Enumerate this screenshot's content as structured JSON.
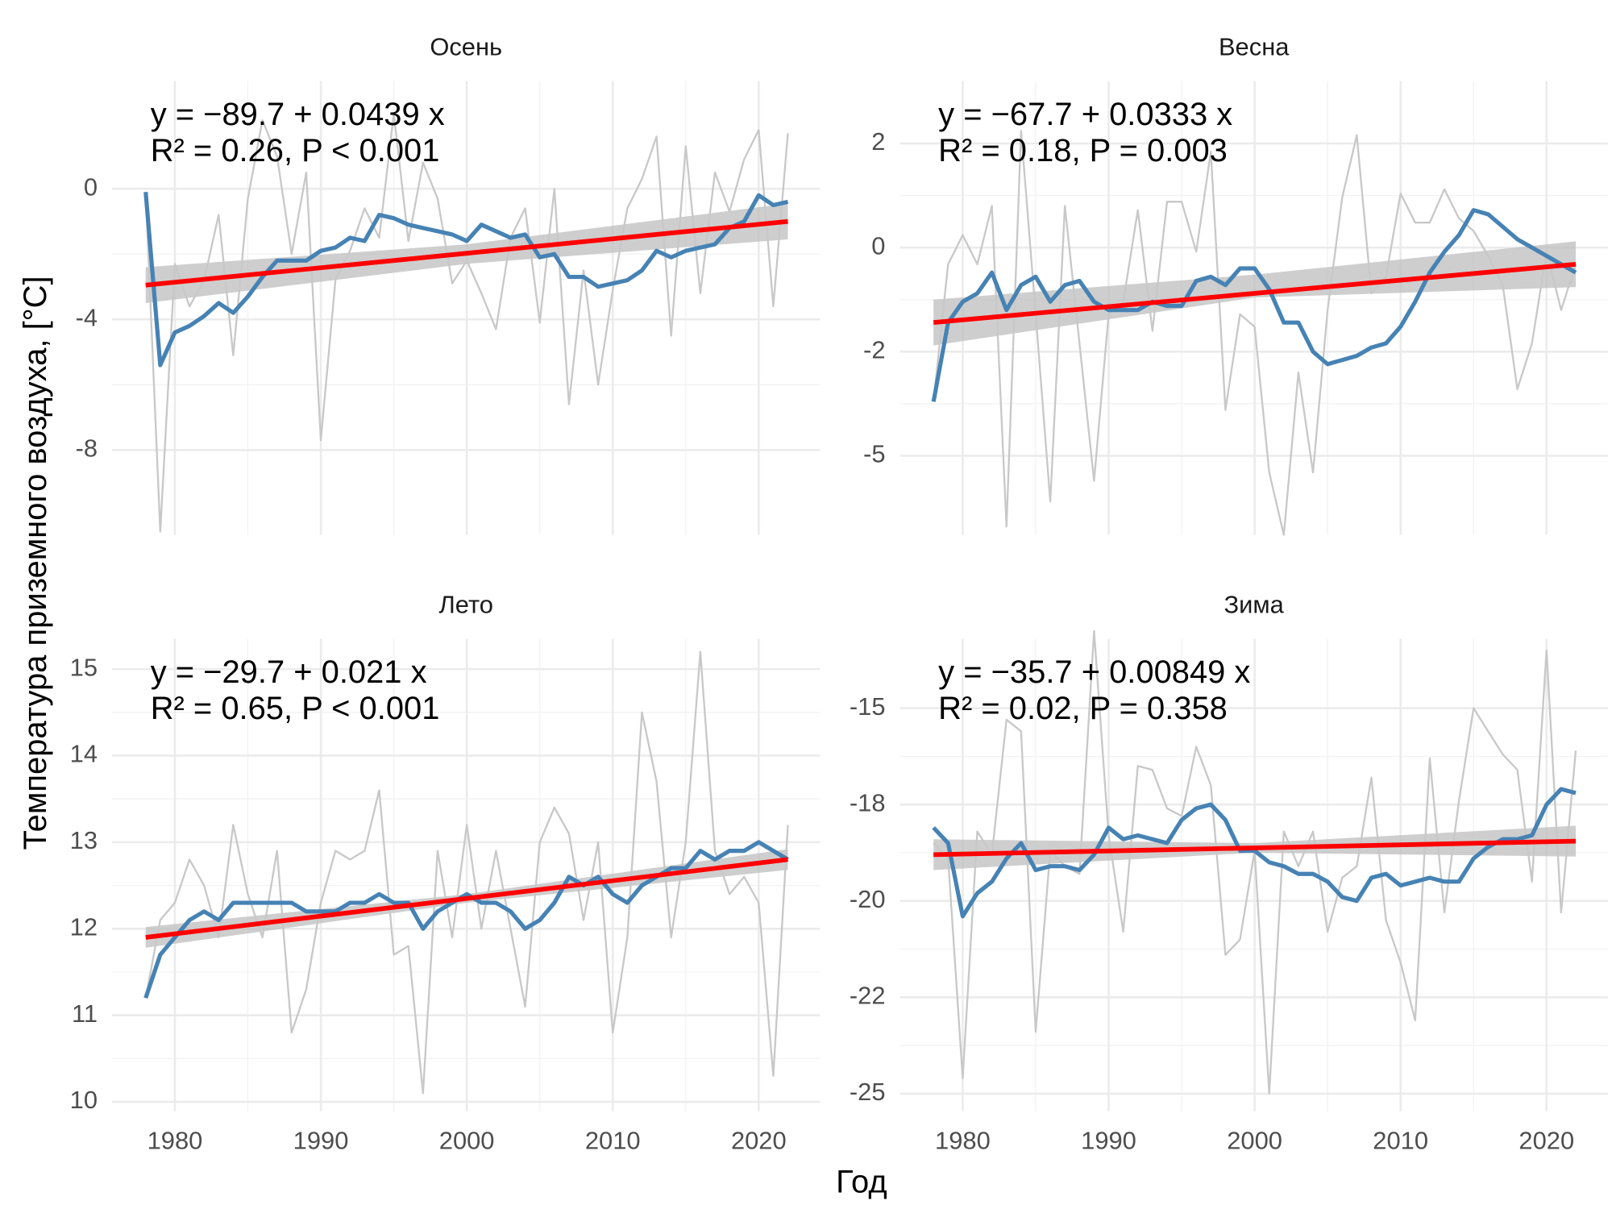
{
  "xlabel": "Год",
  "ylabel": "Температура приземного воздуха, [°C]",
  "chart_data": [
    {
      "type": "line",
      "title": "Осень",
      "equation": "y = −89.7 + 0.0439 x",
      "stats": "R² = 0.26, P < 0.001",
      "x": [
        1978,
        1979,
        1980,
        1981,
        1982,
        1983,
        1984,
        1985,
        1986,
        1987,
        1988,
        1989,
        1990,
        1991,
        1992,
        1993,
        1994,
        1995,
        1996,
        1997,
        1998,
        1999,
        2000,
        2001,
        2002,
        2003,
        2004,
        2005,
        2006,
        2007,
        2008,
        2009,
        2010,
        2011,
        2012,
        2013,
        2014,
        2015,
        2016,
        2017,
        2018,
        2019,
        2020,
        2021,
        2022
      ],
      "xlim": [
        1975.7,
        2024.2
      ],
      "xticks": [
        1980,
        1990,
        2000,
        2010,
        2020
      ],
      "xtick_labels": false,
      "ylim": [
        -10.6,
        3.3
      ],
      "yticks": [
        -8,
        -4,
        0
      ],
      "grid": true,
      "band": {
        "x": [
          1978,
          2000,
          2022
        ],
        "lower": [
          -3.5,
          -2.3,
          -1.55
        ],
        "upper": [
          -2.4,
          -1.7,
          -0.45
        ],
        "color": "#bebebe"
      },
      "series": [
        {
          "color": "#c8c8c8",
          "values": [
            -0.1,
            -10.5,
            -2.3,
            -3.6,
            -2.8,
            -0.8,
            -5.1,
            -0.3,
            2.1,
            1.0,
            -2.0,
            0.5,
            -7.7,
            -2.8,
            -1.9,
            -0.6,
            -1.5,
            2.3,
            -1.6,
            0.8,
            -0.3,
            -2.9,
            -2.2,
            -3.2,
            -4.3,
            -1.5,
            -0.6,
            -4.1,
            0.0,
            -6.6,
            -2.5,
            -6.0,
            -3.1,
            -0.6,
            0.3,
            1.6,
            -4.5,
            1.3,
            -3.2,
            0.5,
            -0.7,
            0.9,
            1.8,
            -3.6,
            1.7
          ]
        },
        {
          "color": "#4682b4",
          "values": [
            -0.1,
            -5.4,
            -4.4,
            -4.2,
            -3.9,
            -3.5,
            -3.8,
            -3.3,
            -2.7,
            -2.2,
            -2.2,
            -2.2,
            -1.9,
            -1.8,
            -1.5,
            -1.6,
            -0.8,
            -0.9,
            -1.1,
            -1.2,
            -1.3,
            -1.4,
            -1.6,
            -1.1,
            -1.3,
            -1.5,
            -1.4,
            -2.1,
            -2.0,
            -2.7,
            -2.7,
            -3.0,
            -2.9,
            -2.8,
            -2.5,
            -1.9,
            -2.1,
            -1.9,
            -1.8,
            -1.7,
            -1.2,
            -1.0,
            -0.2,
            -0.5,
            -0.4
          ]
        },
        {
          "color": "#ff0000",
          "x": [
            1978,
            2022
          ],
          "values": [
            -2.95,
            -1.0
          ]
        }
      ]
    },
    {
      "type": "line",
      "title": "Весна",
      "equation": "y = −67.7 + 0.0333 x",
      "stats": "R² = 0.18, P = 0.003",
      "x": [
        1978,
        1979,
        1980,
        1981,
        1982,
        1983,
        1984,
        1985,
        1986,
        1987,
        1988,
        1989,
        1990,
        1991,
        1992,
        1993,
        1994,
        1995,
        1996,
        1997,
        1998,
        1999,
        2000,
        2001,
        2002,
        2003,
        2004,
        2005,
        2006,
        2007,
        2008,
        2009,
        2010,
        2011,
        2012,
        2013,
        2014,
        2015,
        2016,
        2017,
        2018,
        2019,
        2020,
        2021,
        2022
      ],
      "xlim": [
        1975.7,
        2024.2
      ],
      "xticks": [
        1980,
        1990,
        2000,
        2010,
        2020
      ],
      "xtick_labels": false,
      "ylim": [
        -6.9,
        4.0
      ],
      "yticks": [
        -5,
        {
          "value": -2.5,
          "label": "-2"
        },
        0,
        {
          "value": 2.5,
          "label": "2"
        }
      ],
      "grid": true,
      "band": {
        "x": [
          1978,
          2000,
          2022
        ],
        "lower": [
          -2.35,
          -1.2,
          -0.95
        ],
        "upper": [
          -1.25,
          -0.65,
          0.15
        ],
        "color": "#bebebe"
      },
      "series": [
        {
          "color": "#c8c8c8",
          "values": [
            -3.7,
            -0.4,
            0.3,
            -0.4,
            1.0,
            -6.7,
            2.8,
            -1.6,
            -6.1,
            1.0,
            -2.3,
            -5.6,
            -1.6,
            -1.3,
            0.9,
            -2.0,
            1.1,
            1.1,
            -0.1,
            2.3,
            -3.9,
            -1.6,
            -1.9,
            -5.4,
            -6.9,
            -3.0,
            -5.4,
            -1.5,
            1.2,
            2.7,
            -1.1,
            -0.7,
            1.3,
            0.6,
            0.6,
            1.4,
            0.7,
            0.4,
            -0.2,
            -0.9,
            -3.4,
            -2.3,
            -0.1,
            -1.5,
            -0.4
          ]
        },
        {
          "color": "#4682b4",
          "values": [
            -3.7,
            -1.8,
            -1.3,
            -1.1,
            -0.6,
            -1.5,
            -0.9,
            -0.7,
            -1.3,
            -0.9,
            -0.8,
            -1.3,
            -1.5,
            -1.5,
            -1.5,
            -1.3,
            -1.4,
            -1.4,
            -0.8,
            -0.7,
            -0.9,
            -0.5,
            -0.5,
            -1.0,
            -1.8,
            -1.8,
            -2.5,
            -2.8,
            -2.7,
            -2.6,
            -2.4,
            -2.3,
            -1.9,
            -1.3,
            -0.6,
            -0.1,
            0.3,
            0.9,
            0.8,
            0.5,
            0.2,
            0.0,
            -0.2,
            -0.4,
            -0.6
          ]
        },
        {
          "color": "#ff0000",
          "x": [
            1978,
            2022
          ],
          "values": [
            -1.8,
            -0.4
          ]
        }
      ]
    },
    {
      "type": "line",
      "title": "Лето",
      "equation": "y = −29.7 + 0.021 x",
      "stats": "R² = 0.65, P < 0.001",
      "x": [
        1978,
        1979,
        1980,
        1981,
        1982,
        1983,
        1984,
        1985,
        1986,
        1987,
        1988,
        1989,
        1990,
        1991,
        1992,
        1993,
        1994,
        1995,
        1996,
        1997,
        1998,
        1999,
        2000,
        2001,
        2002,
        2003,
        2004,
        2005,
        2006,
        2007,
        2008,
        2009,
        2010,
        2011,
        2012,
        2013,
        2014,
        2015,
        2016,
        2017,
        2018,
        2019,
        2020,
        2021,
        2022
      ],
      "xlim": [
        1975.7,
        2024.2
      ],
      "xticks": [
        1980,
        1990,
        2000,
        2010,
        2020
      ],
      "xtick_labels": true,
      "ylim": [
        9.89,
        15.35
      ],
      "yticks": [
        10,
        11,
        12,
        13,
        14,
        15
      ],
      "grid": true,
      "band": {
        "x": [
          1978,
          2000,
          2022
        ],
        "lower": [
          11.78,
          12.3,
          12.68
        ],
        "upper": [
          12.02,
          12.4,
          12.92
        ],
        "color": "#bebebe"
      },
      "series": [
        {
          "color": "#c8c8c8",
          "values": [
            11.2,
            12.1,
            12.3,
            12.8,
            12.5,
            11.9,
            13.2,
            12.4,
            11.9,
            12.9,
            10.8,
            11.3,
            12.3,
            12.9,
            12.8,
            12.9,
            13.6,
            11.7,
            11.8,
            10.1,
            12.9,
            11.9,
            13.2,
            12.0,
            12.9,
            12.0,
            11.1,
            13.0,
            13.4,
            13.1,
            12.1,
            13.0,
            10.8,
            11.9,
            14.5,
            13.7,
            11.9,
            13.0,
            15.2,
            12.9,
            12.4,
            12.6,
            12.3,
            10.3,
            13.2
          ]
        },
        {
          "color": "#4682b4",
          "values": [
            11.2,
            11.7,
            11.9,
            12.1,
            12.2,
            12.1,
            12.3,
            12.3,
            12.3,
            12.3,
            12.3,
            12.2,
            12.2,
            12.2,
            12.3,
            12.3,
            12.4,
            12.3,
            12.3,
            12.0,
            12.2,
            12.3,
            12.4,
            12.3,
            12.3,
            12.2,
            12.0,
            12.1,
            12.3,
            12.6,
            12.5,
            12.6,
            12.4,
            12.3,
            12.5,
            12.6,
            12.7,
            12.7,
            12.9,
            12.8,
            12.9,
            12.9,
            13.0,
            12.9,
            12.8
          ]
        },
        {
          "color": "#ff0000",
          "x": [
            1978,
            2022
          ],
          "values": [
            11.9,
            12.8
          ]
        }
      ]
    },
    {
      "type": "line",
      "title": "Зима",
      "equation": "y = −35.7 + 0.00849 x",
      "stats": "R² = 0.02, P = 0.358",
      "x": [
        1978,
        1979,
        1980,
        1981,
        1982,
        1983,
        1984,
        1985,
        1986,
        1987,
        1988,
        1989,
        1990,
        1991,
        1992,
        1993,
        1994,
        1995,
        1996,
        1997,
        1998,
        1999,
        2000,
        2001,
        2002,
        2003,
        2004,
        2005,
        2006,
        2007,
        2008,
        2009,
        2010,
        2011,
        2012,
        2013,
        2014,
        2015,
        2016,
        2017,
        2018,
        2019,
        2020,
        2021,
        2022
      ],
      "xlim": [
        1975.7,
        2024.2
      ],
      "xticks": [
        1980,
        1990,
        2000,
        2010,
        2020
      ],
      "xtick_labels": true,
      "ylim": [
        -25.46,
        -13.2
      ],
      "yticks": [
        -25,
        {
          "value": -22.5,
          "label": "-22"
        },
        -20,
        {
          "value": -17.5,
          "label": "-18"
        },
        -15
      ],
      "grid": true,
      "band": {
        "x": [
          1978,
          2000,
          2022
        ],
        "lower": [
          -19.2,
          -18.75,
          -18.85
        ],
        "upper": [
          -18.4,
          -18.5,
          -18.05
        ],
        "color": "#bebebe"
      },
      "series": [
        {
          "color": "#c8c8c8",
          "values": [
            -18.5,
            -18.9,
            -24.6,
            -18.2,
            -18.8,
            -15.3,
            -15.6,
            -23.4,
            -18.7,
            -19.1,
            -19.3,
            -13.0,
            -18.3,
            -20.8,
            -16.5,
            -16.6,
            -17.6,
            -17.8,
            -16.0,
            -17.0,
            -21.4,
            -21.0,
            -18.7,
            -25.0,
            -18.2,
            -19.1,
            -18.2,
            -20.8,
            -19.4,
            -19.1,
            -16.8,
            -20.5,
            -21.6,
            -23.1,
            -16.3,
            -20.3,
            -17.4,
            -15.0,
            -15.6,
            -16.2,
            -16.6,
            -19.5,
            -13.5,
            -20.3,
            -16.1
          ]
        },
        {
          "color": "#4682b4",
          "values": [
            -18.1,
            -18.5,
            -20.4,
            -19.8,
            -19.5,
            -18.9,
            -18.5,
            -19.2,
            -19.1,
            -19.1,
            -19.2,
            -18.8,
            -18.1,
            -18.4,
            -18.3,
            -18.4,
            -18.5,
            -17.9,
            -17.6,
            -17.5,
            -17.9,
            -18.7,
            -18.7,
            -19.0,
            -19.1,
            -19.3,
            -19.3,
            -19.5,
            -19.9,
            -20.0,
            -19.4,
            -19.3,
            -19.6,
            -19.5,
            -19.4,
            -19.5,
            -19.5,
            -18.9,
            -18.6,
            -18.4,
            -18.4,
            -18.3,
            -17.5,
            -17.1,
            -17.2
          ]
        },
        {
          "color": "#ff0000",
          "x": [
            1978,
            2022
          ],
          "values": [
            -18.8,
            -18.45
          ]
        }
      ]
    }
  ]
}
